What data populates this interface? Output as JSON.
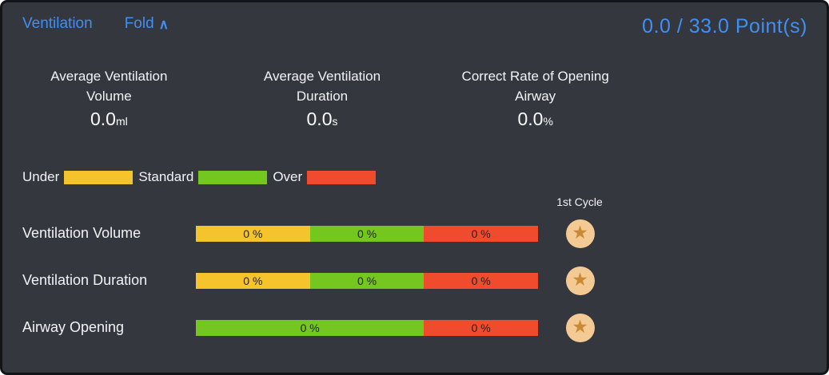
{
  "colors": {
    "panel_bg": "#34373d",
    "panel_border": "#121418",
    "accent_blue": "#3f8ff7",
    "text_white": "#f2f3f5",
    "under": "#f5c32b",
    "standard": "#74c71f",
    "over": "#ef4b2c",
    "bar_text": "#222222",
    "badge_bg": "#f3ca94",
    "badge_star": "#ca8a35"
  },
  "header": {
    "title": "Ventilation",
    "fold_label": "Fold",
    "fold_chevron": "∧",
    "score": "0.0 / 33.0 Point(s)"
  },
  "stats": [
    {
      "title_line1": "Average Ventilation",
      "title_line2": "Volume",
      "value": "0.0",
      "unit": "ml"
    },
    {
      "title_line1": "Average Ventilation",
      "title_line2": "Duration",
      "value": "0.0",
      "unit": "s"
    },
    {
      "title_line1": "Correct Rate of Opening",
      "title_line2": "Airway",
      "value": "0.0",
      "unit": "%"
    }
  ],
  "legend": {
    "items": [
      {
        "label": "Under",
        "band": "under",
        "color": "#f5c32b"
      },
      {
        "label": "Standard",
        "band": "standard",
        "color": "#74c71f"
      },
      {
        "label": "Over",
        "band": "over",
        "color": "#ef4b2c"
      }
    ]
  },
  "cycle_header": "1st Cycle",
  "star_glyph": "★",
  "rows": [
    {
      "label": "Ventilation Volume",
      "segments": [
        {
          "band": "under",
          "text": "0 %",
          "fraction": 0.3333
        },
        {
          "band": "standard",
          "text": "0 %",
          "fraction": 0.3333
        },
        {
          "band": "over",
          "text": "0 %",
          "fraction": 0.3333
        }
      ]
    },
    {
      "label": "Ventilation Duration",
      "segments": [
        {
          "band": "under",
          "text": "0 %",
          "fraction": 0.3333
        },
        {
          "band": "standard",
          "text": "0 %",
          "fraction": 0.3333
        },
        {
          "band": "over",
          "text": "0 %",
          "fraction": 0.3333
        }
      ]
    },
    {
      "label": "Airway Opening",
      "segments": [
        {
          "band": "standard",
          "text": "0 %",
          "fraction": 0.6667
        },
        {
          "band": "over",
          "text": "0 %",
          "fraction": 0.3333
        }
      ]
    }
  ]
}
